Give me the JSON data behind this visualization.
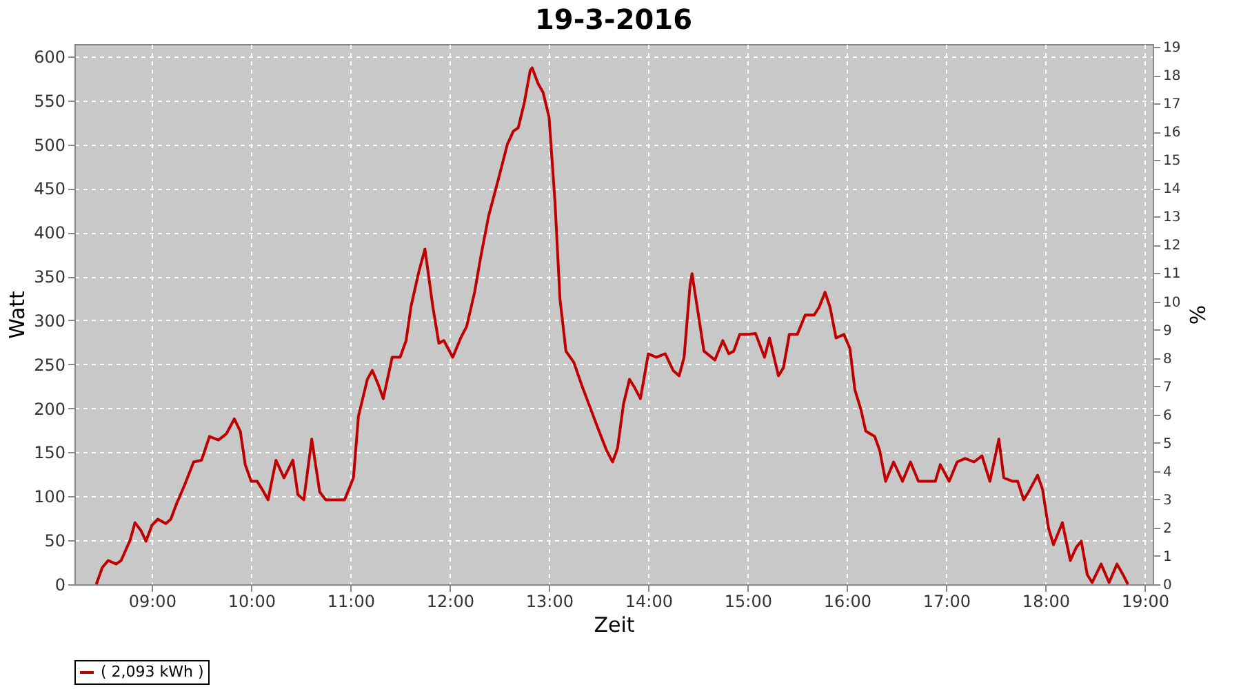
{
  "chart_data": {
    "type": "line",
    "title": "19-3-2016",
    "xlabel": "Zeit",
    "ylabel": "Watt",
    "y2label": "%",
    "xlim": [
      8.22,
      19.08
    ],
    "xticks": [
      {
        "value": 9,
        "label": "09:00"
      },
      {
        "value": 10,
        "label": "10:00"
      },
      {
        "value": 11,
        "label": "11:00"
      },
      {
        "value": 12,
        "label": "12:00"
      },
      {
        "value": 13,
        "label": "13:00"
      },
      {
        "value": 14,
        "label": "14:00"
      },
      {
        "value": 15,
        "label": "15:00"
      },
      {
        "value": 16,
        "label": "16:00"
      },
      {
        "value": 17,
        "label": "17:00"
      },
      {
        "value": 18,
        "label": "18:00"
      },
      {
        "value": 19,
        "label": "19:00"
      }
    ],
    "ylim": [
      0,
      614
    ],
    "yticks": [
      0,
      50,
      100,
      150,
      200,
      250,
      300,
      350,
      400,
      450,
      500,
      550,
      600
    ],
    "y2lim": [
      0,
      19.1
    ],
    "y2ticks": [
      0,
      1,
      2,
      3,
      4,
      5,
      6,
      7,
      8,
      9,
      10,
      11,
      12,
      13,
      14,
      15,
      16,
      17,
      18,
      19
    ],
    "grid": true,
    "legend": "bottom",
    "marker": "none",
    "line_style": "solid",
    "x": [
      8.44,
      8.5,
      8.56,
      8.64,
      8.69,
      8.78,
      8.83,
      8.89,
      8.94,
      9.0,
      9.06,
      9.14,
      9.19,
      9.25,
      9.33,
      9.42,
      9.5,
      9.58,
      9.67,
      9.75,
      9.83,
      9.89,
      9.94,
      10.0,
      10.06,
      10.11,
      10.17,
      10.25,
      10.33,
      10.42,
      10.47,
      10.53,
      10.61,
      10.69,
      10.75,
      10.94,
      11.03,
      11.08,
      11.17,
      11.22,
      11.28,
      11.33,
      11.42,
      11.5,
      11.56,
      11.61,
      11.69,
      11.75,
      11.83,
      11.89,
      11.94,
      12.03,
      12.11,
      12.17,
      12.25,
      12.31,
      12.39,
      12.5,
      12.58,
      12.64,
      12.69,
      12.75,
      12.81,
      12.83,
      12.89,
      12.94,
      13.0,
      13.06,
      13.11,
      13.17,
      13.25,
      13.33,
      13.42,
      13.5,
      13.58,
      13.64,
      13.69,
      13.75,
      13.81,
      13.86,
      13.92,
      14.0,
      14.08,
      14.17,
      14.25,
      14.31,
      14.36,
      14.42,
      14.44,
      14.5,
      14.56,
      14.67,
      14.75,
      14.81,
      14.86,
      14.92,
      15.0,
      15.08,
      15.17,
      15.22,
      15.31,
      15.36,
      15.42,
      15.5,
      15.58,
      15.67,
      15.72,
      15.78,
      15.83,
      15.89,
      15.97,
      16.03,
      16.08,
      16.14,
      16.19,
      16.28,
      16.33,
      16.39,
      16.47,
      16.56,
      16.64,
      16.72,
      16.81,
      16.89,
      16.94,
      17.03,
      17.11,
      17.19,
      17.28,
      17.36,
      17.44,
      17.53,
      17.58,
      17.67,
      17.72,
      17.78,
      17.83,
      17.92,
      17.97,
      18.03,
      18.08,
      18.17,
      18.25,
      18.31,
      18.36,
      18.42,
      18.47,
      18.56,
      18.64,
      18.72,
      18.78,
      18.83
    ],
    "series": [
      {
        "name": "( 2,093 kWh )",
        "color": "#c00000",
        "values": [
          0,
          19,
          27,
          23,
          27,
          50,
          70,
          61,
          49,
          67,
          74,
          69,
          74,
          92,
          113,
          139,
          141,
          168,
          164,
          171,
          188,
          174,
          136,
          117,
          117,
          108,
          96,
          141,
          121,
          141,
          102,
          96,
          165,
          105,
          96,
          96,
          121,
          191,
          233,
          243,
          227,
          211,
          258,
          258,
          277,
          316,
          356,
          381,
          315,
          274,
          277,
          258,
          280,
          293,
          332,
          371,
          418,
          465,
          500,
          515,
          519,
          547,
          584,
          587,
          569,
          559,
          531,
          434,
          324,
          265,
          252,
          226,
          199,
          175,
          152,
          139,
          155,
          205,
          233,
          224,
          211,
          262,
          258,
          262,
          243,
          237,
          258,
          340,
          353,
          309,
          265,
          255,
          277,
          262,
          265,
          284,
          284,
          285,
          258,
          280,
          237,
          246,
          284,
          284,
          306,
          306,
          315,
          332,
          315,
          280,
          284,
          268,
          221,
          199,
          174,
          168,
          152,
          117,
          139,
          117,
          139,
          117,
          117,
          117,
          136,
          117,
          139,
          143,
          139,
          146,
          117,
          165,
          121,
          117,
          117,
          96,
          105,
          124,
          108,
          64,
          45,
          70,
          27,
          42,
          49,
          11,
          2,
          23,
          2,
          23,
          11,
          0
        ]
      }
    ]
  }
}
